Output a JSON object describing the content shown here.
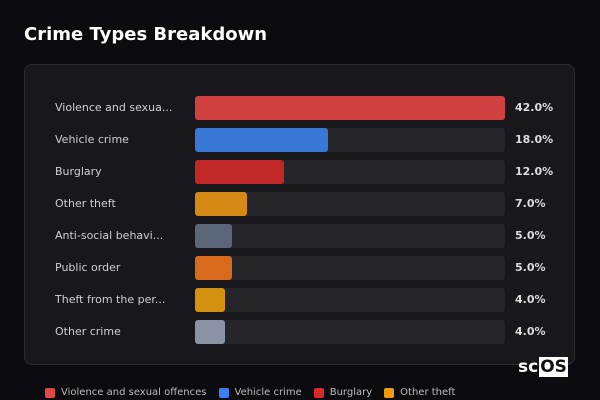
{
  "chart_data": {
    "type": "bar",
    "orientation": "horizontal",
    "title": "Crime Types Breakdown",
    "categories": [
      "Violence and sexua...",
      "Vehicle crime",
      "Burglary",
      "Other theft",
      "Anti-social behavi...",
      "Public order",
      "Theft from the per...",
      "Other crime"
    ],
    "values": [
      42.0,
      18.0,
      12.0,
      7.0,
      5.0,
      5.0,
      4.0,
      4.0
    ],
    "value_labels": [
      "42.0%",
      "18.0%",
      "12.0%",
      "7.0%",
      "5.0%",
      "5.0%",
      "4.0%",
      "4.0%"
    ],
    "colors": [
      "#d04040",
      "#3a78d8",
      "#c02828",
      "#d48a14",
      "#5a6678",
      "#d86a1c",
      "#d4900f",
      "#8a94a6"
    ],
    "xlim": [
      0,
      42
    ],
    "legend": [
      {
        "label": "Violence and sexual offences",
        "color": "#e04848"
      },
      {
        "label": "Vehicle crime",
        "color": "#3a80f0"
      },
      {
        "label": "Burglary",
        "color": "#d82828"
      },
      {
        "label": "Other theft",
        "color": "#f09a10"
      }
    ],
    "legend_position": "bottom"
  },
  "logo": {
    "text_a": "sc",
    "text_b": "OS"
  }
}
